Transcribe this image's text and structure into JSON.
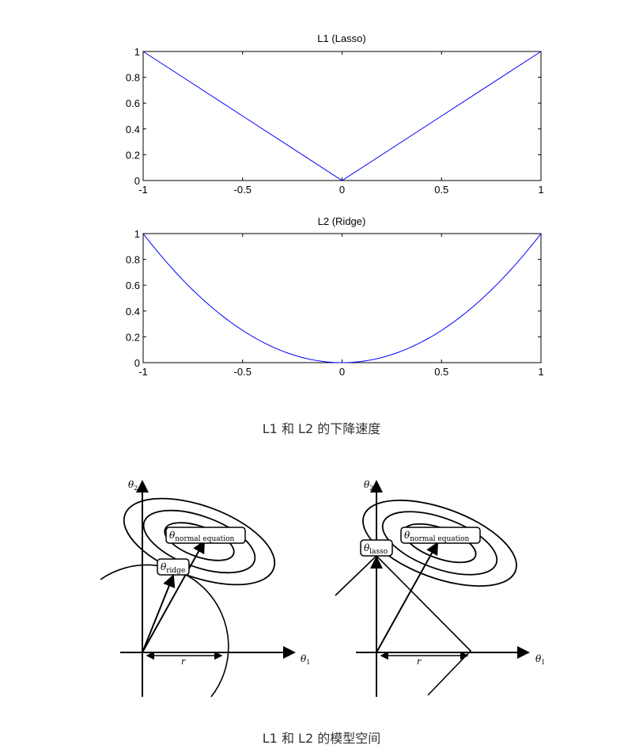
{
  "captions": {
    "speed": "L1 和 L2 的下降速度",
    "space": "L1 和 L2 的模型空间"
  },
  "chart_data": [
    {
      "type": "line",
      "title": "L1 (Lasso)",
      "function": "|x|",
      "x": [
        -1,
        -0.5,
        0,
        0.5,
        1
      ],
      "y": [
        1,
        0.5,
        0,
        0.5,
        1
      ],
      "xlim": [
        -1,
        1
      ],
      "ylim": [
        0,
        1
      ],
      "xticks": [
        "-1",
        "-0.5",
        "0",
        "0.5",
        "1"
      ],
      "yticks": [
        "0",
        "0.2",
        "0.4",
        "0.6",
        "0.8",
        "1"
      ],
      "color": "#0000ff",
      "grid": false
    },
    {
      "type": "line",
      "title": "L2 (Ridge)",
      "function": "x^2",
      "x": [
        -1,
        -0.75,
        -0.5,
        -0.25,
        0,
        0.25,
        0.5,
        0.75,
        1
      ],
      "y": [
        1,
        0.5625,
        0.25,
        0.0625,
        0,
        0.0625,
        0.25,
        0.5625,
        1
      ],
      "xlim": [
        -1,
        1
      ],
      "ylim": [
        0,
        1
      ],
      "xticks": [
        "-1",
        "-0.5",
        "0",
        "0.5",
        "1"
      ],
      "yticks": [
        "0",
        "0.2",
        "0.4",
        "0.6",
        "0.8",
        "1"
      ],
      "color": "#0000ff",
      "grid": false
    }
  ],
  "diagrams": {
    "theta_symbol": "θ",
    "axis_x_sub": "1",
    "axis_y_sub": "2",
    "radius_label": "r",
    "normal_sub": "normal equation",
    "ridge_sub": "ridge",
    "lasso_sub": "lasso"
  }
}
